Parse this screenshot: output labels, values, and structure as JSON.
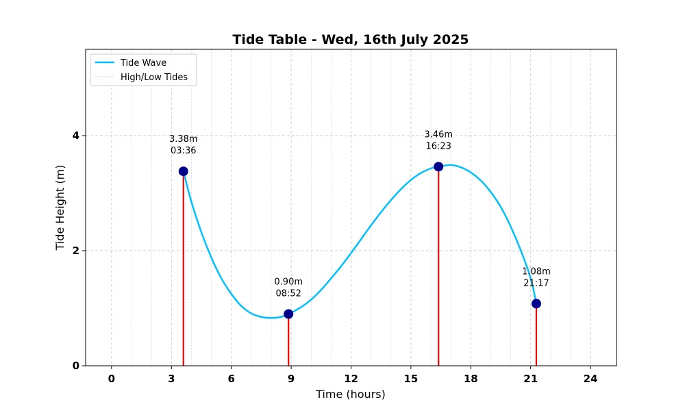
{
  "chart_data": {
    "type": "line",
    "title": "Tide Table - Wed, 16th July 2025",
    "xlabel": "Time (hours)",
    "ylabel": "Tide Height (m)",
    "xlim": [
      -1.3,
      25.3
    ],
    "ylim": [
      0,
      5.5
    ],
    "xticks": [
      0,
      3,
      6,
      9,
      12,
      15,
      18,
      21,
      24
    ],
    "xtick_labels": [
      "0",
      "3",
      "6",
      "9",
      "12",
      "15",
      "18",
      "21",
      "24"
    ],
    "yticks": [
      0,
      2,
      4
    ],
    "ytick_labels": [
      "0",
      "2",
      "4"
    ],
    "grid": true,
    "legend_placement": "top-left",
    "tides": [
      {
        "time": 3.6,
        "height": 3.38,
        "value_label": "3.38m",
        "time_label": "03:36"
      },
      {
        "time": 8.867,
        "height": 0.9,
        "value_label": "0.90m",
        "time_label": "08:52"
      },
      {
        "time": 16.383,
        "height": 3.46,
        "value_label": "3.46m",
        "time_label": "16:23"
      },
      {
        "time": 21.283,
        "height": 1.08,
        "value_label": "1.08m",
        "time_label": "21:17"
      }
    ],
    "series": [
      {
        "name": "Tide Wave",
        "color": "#00bfff",
        "points": [
          {
            "x": 3.6,
            "y": 3.38
          },
          {
            "x": 4.0,
            "y": 2.85
          },
          {
            "x": 4.5,
            "y": 2.32
          },
          {
            "x": 5.0,
            "y": 1.88
          },
          {
            "x": 5.5,
            "y": 1.52
          },
          {
            "x": 6.0,
            "y": 1.25
          },
          {
            "x": 6.5,
            "y": 1.04
          },
          {
            "x": 7.0,
            "y": 0.91
          },
          {
            "x": 7.5,
            "y": 0.85
          },
          {
            "x": 8.0,
            "y": 0.83
          },
          {
            "x": 8.5,
            "y": 0.85
          },
          {
            "x": 8.867,
            "y": 0.9
          },
          {
            "x": 9.5,
            "y": 1.02
          },
          {
            "x": 10.0,
            "y": 1.15
          },
          {
            "x": 10.5,
            "y": 1.32
          },
          {
            "x": 11.0,
            "y": 1.52
          },
          {
            "x": 11.5,
            "y": 1.73
          },
          {
            "x": 12.0,
            "y": 1.96
          },
          {
            "x": 12.5,
            "y": 2.2
          },
          {
            "x": 13.0,
            "y": 2.44
          },
          {
            "x": 13.5,
            "y": 2.67
          },
          {
            "x": 14.0,
            "y": 2.88
          },
          {
            "x": 14.5,
            "y": 3.07
          },
          {
            "x": 15.0,
            "y": 3.23
          },
          {
            "x": 15.5,
            "y": 3.35
          },
          {
            "x": 16.0,
            "y": 3.43
          },
          {
            "x": 16.383,
            "y": 3.46
          },
          {
            "x": 17.0,
            "y": 3.49
          },
          {
            "x": 17.5,
            "y": 3.45
          },
          {
            "x": 18.0,
            "y": 3.36
          },
          {
            "x": 18.5,
            "y": 3.22
          },
          {
            "x": 19.0,
            "y": 3.02
          },
          {
            "x": 19.5,
            "y": 2.76
          },
          {
            "x": 20.0,
            "y": 2.42
          },
          {
            "x": 20.5,
            "y": 2.01
          },
          {
            "x": 21.0,
            "y": 1.52
          },
          {
            "x": 21.283,
            "y": 1.08
          }
        ]
      },
      {
        "name": "High/Low Tides",
        "color": "#ff0000"
      }
    ],
    "marker_color": "#00008b",
    "grid_color": "#cccccc"
  }
}
